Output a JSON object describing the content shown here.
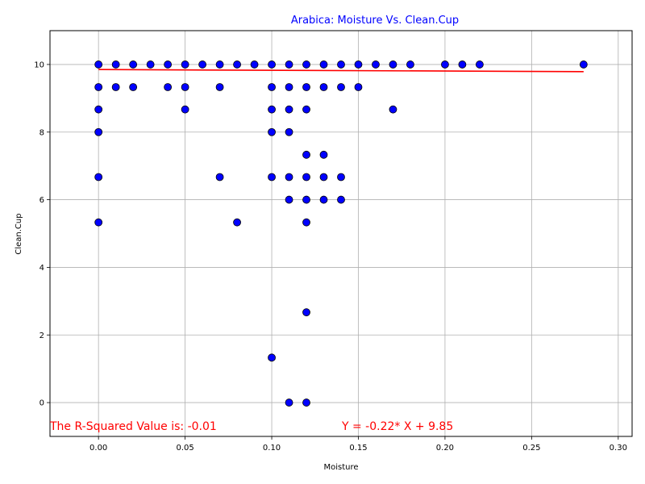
{
  "chart_data": {
    "type": "scatter",
    "title": "Arabica: Moisture Vs. Clean.Cup",
    "title_color": "#0000ff",
    "xlabel": "Moisture",
    "ylabel": "Clean.Cup",
    "xlim": [
      -0.028,
      0.308
    ],
    "ylim": [
      -1,
      11
    ],
    "xticks": [
      0.0,
      0.05,
      0.1,
      0.15,
      0.2,
      0.25,
      0.3
    ],
    "xtick_labels": [
      "0.00",
      "0.05",
      "0.10",
      "0.15",
      "0.20",
      "0.25",
      "0.30"
    ],
    "yticks": [
      0,
      2,
      4,
      6,
      8,
      10
    ],
    "ytick_labels": [
      "0",
      "2",
      "4",
      "6",
      "8",
      "10"
    ],
    "grid": true,
    "marker_color": "#0000ff",
    "marker_edge_color": "#000000",
    "regression_color": "#ff0000",
    "points": [
      [
        0.0,
        10
      ],
      [
        0.0,
        9.33
      ],
      [
        0.0,
        8.67
      ],
      [
        0.0,
        8
      ],
      [
        0.0,
        6.67
      ],
      [
        0.0,
        5.33
      ],
      [
        0.01,
        10
      ],
      [
        0.01,
        9.33
      ],
      [
        0.02,
        10
      ],
      [
        0.02,
        9.33
      ],
      [
        0.03,
        10
      ],
      [
        0.04,
        10
      ],
      [
        0.04,
        9.33
      ],
      [
        0.05,
        10
      ],
      [
        0.05,
        9.33
      ],
      [
        0.05,
        8.67
      ],
      [
        0.06,
        10
      ],
      [
        0.07,
        10
      ],
      [
        0.07,
        9.33
      ],
      [
        0.07,
        6.67
      ],
      [
        0.08,
        10
      ],
      [
        0.08,
        5.33
      ],
      [
        0.09,
        10
      ],
      [
        0.1,
        10
      ],
      [
        0.1,
        9.33
      ],
      [
        0.1,
        8.67
      ],
      [
        0.1,
        8
      ],
      [
        0.1,
        6.67
      ],
      [
        0.1,
        1.33
      ],
      [
        0.11,
        10
      ],
      [
        0.11,
        9.33
      ],
      [
        0.11,
        8.67
      ],
      [
        0.11,
        8
      ],
      [
        0.11,
        6.67
      ],
      [
        0.11,
        6
      ],
      [
        0.11,
        0
      ],
      [
        0.12,
        10
      ],
      [
        0.12,
        9.33
      ],
      [
        0.12,
        8.67
      ],
      [
        0.12,
        7.33
      ],
      [
        0.12,
        6.67
      ],
      [
        0.12,
        6
      ],
      [
        0.12,
        5.33
      ],
      [
        0.12,
        2.67
      ],
      [
        0.12,
        0
      ],
      [
        0.13,
        10
      ],
      [
        0.13,
        9.33
      ],
      [
        0.13,
        7.33
      ],
      [
        0.13,
        6.67
      ],
      [
        0.13,
        6
      ],
      [
        0.14,
        10
      ],
      [
        0.14,
        9.33
      ],
      [
        0.14,
        6.67
      ],
      [
        0.14,
        6
      ],
      [
        0.15,
        10
      ],
      [
        0.15,
        9.33
      ],
      [
        0.16,
        10
      ],
      [
        0.17,
        10
      ],
      [
        0.17,
        8.67
      ],
      [
        0.18,
        10
      ],
      [
        0.2,
        10
      ],
      [
        0.21,
        10
      ],
      [
        0.22,
        10
      ],
      [
        0.28,
        10
      ]
    ],
    "regression": {
      "slope": -0.22,
      "intercept": 9.85,
      "x_range": [
        0.0,
        0.28
      ]
    },
    "annotations": {
      "r_squared_text": "The R-Squared Value is: -0.01",
      "equation_text": "Y = -0.22* X + 9.85",
      "color": "#ff0000"
    }
  }
}
